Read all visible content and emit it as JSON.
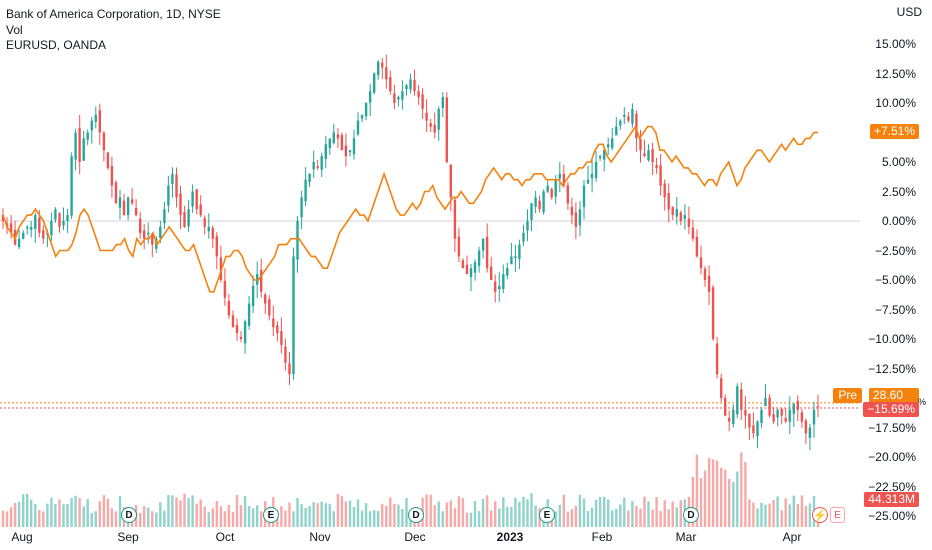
{
  "legend": {
    "symbol": "Bank of America Corporation, 1D, NYSE",
    "volume": "Vol",
    "compare": "EURUSD, OANDA"
  },
  "axis": {
    "unit": "USD",
    "y_ticks": [
      "15.00%",
      "12.50%",
      "10.00%",
      "7.50%",
      "5.00%",
      "2.50%",
      "0.00%",
      "−12.50%",
      "−17.50%",
      "−20.00%",
      "−22.50%",
      "−25.00%"
    ],
    "y_ticks_mid": [
      "−2.50%",
      "−5.00%",
      "−7.50%",
      "−10.00%"
    ],
    "x_ticks": [
      "Aug",
      "Sep",
      "Oct",
      "Nov",
      "Dec",
      "2023",
      "Feb",
      "Mar",
      "Apr"
    ]
  },
  "tags": {
    "eurusd": "+7.51%",
    "pre_label": "Pre",
    "pre_value": "28.60",
    "bac_change": "−15.69%",
    "volume": "44.313M",
    "pct_glyph": "%"
  },
  "events": {
    "dividend": "D",
    "earnings": "E",
    "split_icon": "lightning-icon"
  },
  "colors": {
    "up": "#26a69a",
    "down": "#ef5350",
    "line": "#f5820d",
    "vol_up": "#8fd3cb",
    "vol_down": "#f7a9a7",
    "grid": "#d1d4dc"
  },
  "chart_data": {
    "type": "candlestick",
    "title": "Bank of America Corporation, 1D, NYSE",
    "ylabel": "USD",
    "y_unit": "percent change",
    "ylim": [
      -25,
      16.5
    ],
    "x_ticks": [
      "Aug",
      "Sep",
      "Oct",
      "Nov",
      "Dec",
      "2023",
      "Feb",
      "Mar",
      "Apr"
    ],
    "bac_percent_change": [
      0,
      -0.5,
      -1,
      -2,
      -1.5,
      -1,
      -0.5,
      -0.5,
      0.5,
      -1,
      -1.5,
      -1,
      0,
      1,
      -0.5,
      0,
      0.5,
      5.5,
      7.5,
      5,
      7,
      7.5,
      8.5,
      9,
      7.5,
      6,
      4.5,
      3,
      1.5,
      2,
      0.5,
      2,
      1.5,
      0.5,
      -1,
      -1.5,
      -1,
      -2,
      -1.5,
      -0.5,
      1,
      3,
      4,
      2,
      0.5,
      -0.5,
      1,
      2.5,
      1,
      0.5,
      -0.5,
      -0.5,
      -1.5,
      -3,
      -5,
      -6.5,
      -8,
      -9,
      -9.5,
      -10,
      -8.5,
      -7,
      -5.5,
      -4.5,
      -6,
      -7,
      -8,
      -9,
      -9.5,
      -10.5,
      -12,
      -13,
      -3,
      0,
      2,
      3.5,
      4,
      5,
      4.5,
      5.5,
      6.5,
      7,
      7.5,
      7,
      6,
      5.5,
      6,
      7,
      8.5,
      9,
      10,
      11,
      12.5,
      13.5,
      13,
      12,
      11,
      10,
      10.5,
      11,
      11.5,
      12,
      11,
      10.5,
      9.5,
      8.5,
      8,
      7.5,
      9.5,
      10.5,
      5,
      2,
      -1.5,
      -3,
      -4,
      -4.5,
      -4,
      -3.5,
      -2.5,
      -1.5,
      -4,
      -5,
      -6,
      -5.5,
      -4.5,
      -4,
      -3,
      -3,
      -2,
      -1,
      0,
      1.5,
      2,
      1,
      2.5,
      3,
      2,
      3.5,
      4,
      3,
      1.5,
      0.5,
      -0.5,
      1,
      3,
      3.5,
      4,
      5,
      5.5,
      6,
      6.5,
      7,
      8,
      8.5,
      9,
      8.5,
      9.5,
      7,
      6,
      5.5,
      6,
      5,
      4.5,
      3,
      2,
      1,
      0.5,
      1,
      0,
      0.5,
      -0.5,
      -1.5,
      -3,
      -4,
      -5,
      -6,
      -10,
      -13,
      -15,
      -16.5,
      -17,
      -16,
      -14,
      -16,
      -16.5,
      -17.5,
      -18,
      -17,
      -16,
      -15,
      -16.5,
      -17,
      -16,
      -16.5,
      -17,
      -16,
      -15.5,
      -16,
      -17,
      -18,
      -17.5,
      -16,
      -15.69
    ],
    "series": [
      {
        "name": "EURUSD, OANDA",
        "values": [
          0.5,
          -0.5,
          -1,
          -1.5,
          -0.5,
          0,
          0.5,
          0.5,
          1,
          0.5,
          0,
          -1,
          -2,
          -3,
          -2.5,
          -2.5,
          -2.5,
          -2,
          -1,
          0.5,
          1,
          0.5,
          -0.5,
          -1.5,
          -2.5,
          -2.5,
          -2.5,
          -2.5,
          -2,
          -2,
          -1.5,
          -2.5,
          -3,
          -1.5,
          -2,
          -1.5,
          -1.5,
          -1,
          -2,
          -1.5,
          -1,
          -0.5,
          -1,
          -1.5,
          -2,
          -2.5,
          -2.5,
          -2,
          -3,
          -4,
          -5,
          -6,
          -6,
          -5,
          -4,
          -3,
          -3,
          -2.5,
          -2.5,
          -3,
          -4,
          -4.5,
          -5,
          -5,
          -4.5,
          -4,
          -3.5,
          -3,
          -2,
          -2,
          -2,
          -1.5,
          -1.5,
          -1.5,
          -2,
          -2.5,
          -3,
          -3,
          -3.5,
          -4,
          -4,
          -3,
          -2,
          -1,
          -0.5,
          0,
          0.5,
          1,
          0.5,
          0.5,
          0,
          1,
          2,
          3,
          4,
          3,
          2,
          1,
          0.5,
          0.5,
          1,
          1.5,
          1,
          1.5,
          2.5,
          2.5,
          3,
          2,
          1.5,
          1,
          1.5,
          2,
          2,
          2.5,
          2,
          1.5,
          1.5,
          2,
          2.5,
          3.5,
          4,
          4.5,
          4,
          3.5,
          4,
          4,
          3.5,
          3.5,
          3,
          3.5,
          3.5,
          4,
          4,
          4,
          3.5,
          3.5,
          3.5,
          3.5,
          3,
          3.5,
          4,
          4,
          4.5,
          4.5,
          5,
          5,
          6,
          6.5,
          6.5,
          5.5,
          5,
          5.5,
          6,
          6.5,
          7,
          7.5,
          8,
          7,
          7.5,
          8,
          8,
          7.5,
          6,
          6,
          5.5,
          5,
          5.5,
          5,
          4.5,
          4.5,
          4,
          4,
          3.5,
          3,
          3.5,
          3.5,
          3,
          4,
          4.5,
          5,
          4,
          3,
          3.5,
          4.5,
          5,
          5.5,
          6,
          6,
          5.5,
          5,
          5.5,
          6,
          6.5,
          6,
          6.5,
          7,
          6.5,
          6.5,
          7,
          7,
          7.5,
          7.51
        ]
      }
    ],
    "last_values": {
      "bac": -15.69,
      "eurusd": 7.51,
      "premarket_price": 28.6,
      "volume": "44.313M"
    }
  }
}
